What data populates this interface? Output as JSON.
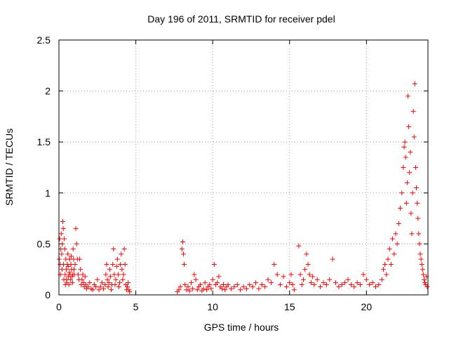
{
  "chart_data": {
    "type": "scatter",
    "title": "Day 196 of 2011, SRMTID for receiver pdel",
    "xlabel": "GPS time / hours",
    "ylabel": "SRMTID / TECUs",
    "xlim": [
      0,
      24
    ],
    "ylim": [
      0,
      2.5
    ],
    "x_ticks": [
      0,
      5,
      10,
      15,
      20
    ],
    "y_ticks": [
      0,
      0.5,
      1,
      1.5,
      2,
      2.5
    ],
    "x_tick_labels": [
      "0",
      "5",
      "10",
      "15",
      "20"
    ],
    "y_tick_labels": [
      "0",
      "0.5",
      "1",
      "1.5",
      "2",
      "2.5"
    ],
    "grid": true,
    "marker": "plus",
    "series_color": "#ff0000",
    "series": [
      {
        "x": [
          0.02,
          0.05,
          0.08,
          0.1,
          0.12,
          0.15,
          0.18,
          0.2,
          0.22,
          0.25,
          0.28,
          0.3,
          0.32,
          0.35,
          0.38,
          0.4,
          0.42,
          0.45,
          0.48,
          0.5,
          0.52,
          0.55,
          0.58,
          0.6,
          0.62,
          0.65,
          0.68,
          0.7,
          0.72,
          0.75,
          0.78,
          0.8,
          0.82,
          0.85,
          0.88,
          0.9,
          0.92,
          0.95,
          0.98,
          1.0,
          1.05,
          1.1,
          1.15,
          1.2,
          1.25,
          1.3,
          1.35,
          1.4,
          1.45,
          1.5,
          1.55,
          1.6,
          1.65,
          1.7,
          1.75,
          1.8,
          1.9,
          2.0,
          2.1,
          2.2,
          2.3,
          2.4,
          2.5,
          2.6,
          2.7,
          2.8,
          2.9,
          3.0,
          3.05,
          3.1,
          3.15,
          3.2,
          3.25,
          3.3,
          3.35,
          3.4,
          3.45,
          3.5,
          3.55,
          3.6,
          3.65,
          3.7,
          3.75,
          3.8,
          3.85,
          3.9,
          3.95,
          4.0,
          4.05,
          4.1,
          4.15,
          4.2,
          4.25,
          4.3,
          4.35,
          4.4,
          4.45,
          4.5,
          4.55,
          4.6,
          7.7,
          7.8,
          7.9,
          8.0,
          8.05,
          8.1,
          8.15,
          8.2,
          8.3,
          8.4,
          8.5,
          8.6,
          8.7,
          8.8,
          8.9,
          9.0,
          9.1,
          9.2,
          9.3,
          9.4,
          9.5,
          9.6,
          9.7,
          9.8,
          9.9,
          10.0,
          10.1,
          10.2,
          10.3,
          10.4,
          10.5,
          10.6,
          10.7,
          10.8,
          10.9,
          11.0,
          11.2,
          11.4,
          11.6,
          11.8,
          12.0,
          12.2,
          12.4,
          12.6,
          12.8,
          13.0,
          13.2,
          13.4,
          13.6,
          13.8,
          14.0,
          14.2,
          14.4,
          14.6,
          14.8,
          15.0,
          15.1,
          15.2,
          15.3,
          15.6,
          15.7,
          15.8,
          15.9,
          16.0,
          16.1,
          16.2,
          16.3,
          16.4,
          16.5,
          16.6,
          16.8,
          17.0,
          17.2,
          17.4,
          17.6,
          17.8,
          18.0,
          18.2,
          18.4,
          18.6,
          18.8,
          19.0,
          19.2,
          19.4,
          19.6,
          19.8,
          20.0,
          20.2,
          20.4,
          20.6,
          20.8,
          21.0,
          21.1,
          21.2,
          21.3,
          21.4,
          21.5,
          21.6,
          21.7,
          21.8,
          21.9,
          22.0,
          22.1,
          22.2,
          22.3,
          22.4,
          22.45,
          22.5,
          22.55,
          22.6,
          22.65,
          22.7,
          22.75,
          22.8,
          22.85,
          22.9,
          22.95,
          23.0,
          23.05,
          23.1,
          23.15,
          23.2,
          23.25,
          23.3,
          23.35,
          23.4,
          23.45,
          23.5,
          23.55,
          23.6,
          23.65,
          23.7,
          23.75,
          23.8,
          23.85,
          23.9,
          23.95
        ],
        "y": [
          0.35,
          0.55,
          0.3,
          0.2,
          0.45,
          0.6,
          0.4,
          0.25,
          0.5,
          0.72,
          0.65,
          0.3,
          0.15,
          0.55,
          0.45,
          0.2,
          0.1,
          0.35,
          0.25,
          0.15,
          0.12,
          0.3,
          0.4,
          0.28,
          0.18,
          0.1,
          0.22,
          0.35,
          0.2,
          0.15,
          0.3,
          0.38,
          0.25,
          0.18,
          0.12,
          0.2,
          0.45,
          0.35,
          0.25,
          0.2,
          0.3,
          0.65,
          0.5,
          0.35,
          0.2,
          0.15,
          0.35,
          0.25,
          0.1,
          0.15,
          0.2,
          0.12,
          0.08,
          0.18,
          0.1,
          0.06,
          0.08,
          0.12,
          0.06,
          0.05,
          0.1,
          0.08,
          0.15,
          0.05,
          0.08,
          0.12,
          0.06,
          0.1,
          0.2,
          0.3,
          0.15,
          0.08,
          0.12,
          0.25,
          0.18,
          0.05,
          0.1,
          0.3,
          0.45,
          0.2,
          0.1,
          0.15,
          0.28,
          0.35,
          0.2,
          0.08,
          0.12,
          0.3,
          0.4,
          0.25,
          0.15,
          0.2,
          0.45,
          0.3,
          0.1,
          0.05,
          0.08,
          0.12,
          0.05,
          0.03,
          0.03,
          0.05,
          0.08,
          0.45,
          0.52,
          0.4,
          0.3,
          0.1,
          0.05,
          0.08,
          0.04,
          0.12,
          0.06,
          0.2,
          0.15,
          0.05,
          0.08,
          0.1,
          0.04,
          0.06,
          0.12,
          0.05,
          0.08,
          0.1,
          0.06,
          0.15,
          0.3,
          0.1,
          0.12,
          0.18,
          0.08,
          0.06,
          0.1,
          0.05,
          0.08,
          0.1,
          0.06,
          0.08,
          0.1,
          0.05,
          0.08,
          0.06,
          0.1,
          0.08,
          0.12,
          0.06,
          0.1,
          0.08,
          0.15,
          0.12,
          0.3,
          0.2,
          0.1,
          0.18,
          0.08,
          0.12,
          0.2,
          0.1,
          0.05,
          0.48,
          0.2,
          0.1,
          0.15,
          0.25,
          0.4,
          0.3,
          0.2,
          0.12,
          0.18,
          0.1,
          0.15,
          0.08,
          0.12,
          0.1,
          0.15,
          0.35,
          0.12,
          0.08,
          0.1,
          0.12,
          0.15,
          0.1,
          0.08,
          0.12,
          0.1,
          0.2,
          0.15,
          0.1,
          0.12,
          0.08,
          0.1,
          0.15,
          0.25,
          0.3,
          0.2,
          0.35,
          0.45,
          0.3,
          0.55,
          0.4,
          0.6,
          0.5,
          0.7,
          0.85,
          1.0,
          1.25,
          1.45,
          1.5,
          1.35,
          0.9,
          1.1,
          1.95,
          1.65,
          1.2,
          1.4,
          0.8,
          0.6,
          1.0,
          1.8,
          1.55,
          2.07,
          1.25,
          1.05,
          0.9,
          0.75,
          0.6,
          0.5,
          0.4,
          0.35,
          0.3,
          0.25,
          0.2,
          0.15,
          0.12,
          0.1,
          0.18,
          0.08
        ]
      }
    ]
  }
}
